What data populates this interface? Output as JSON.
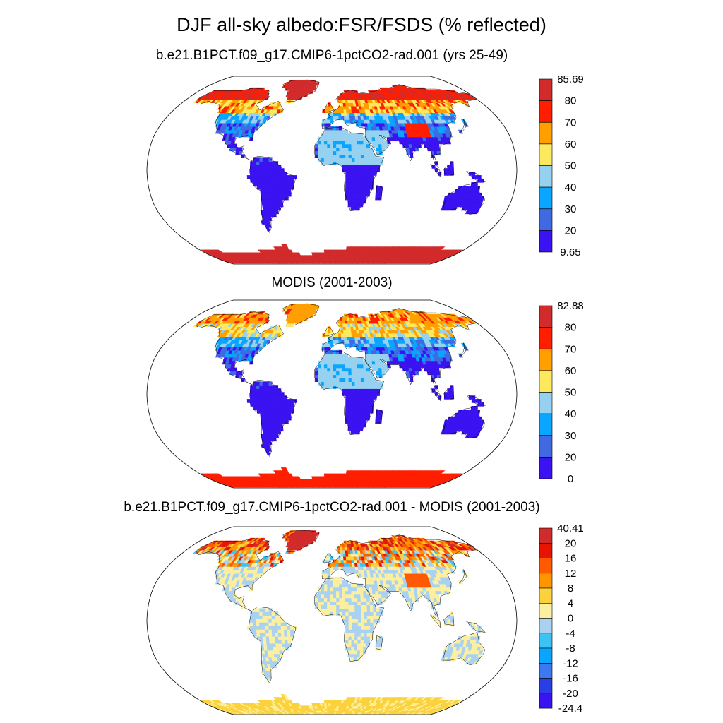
{
  "title": "DJF all-sky albedo:FSR/FSDS (% reflected)",
  "chart_data": [
    {
      "type": "heatmap",
      "projection": "robinson",
      "title": "b.e21.B1PCT.f09_g17.CMIP6-1pctCO2-rad.001 (yrs 25-49)",
      "colorbar": {
        "labels": [
          "85.69",
          "80",
          "70",
          "60",
          "50",
          "40",
          "30",
          "20",
          "9.65"
        ],
        "min": 9.65,
        "max": 85.69,
        "levels": [
          20,
          30,
          40,
          50,
          60,
          70,
          80
        ],
        "colors": [
          "#3b13f2",
          "#4169e1",
          "#0aa5ff",
          "#96d2f0",
          "#fce95e",
          "#ff9f00",
          "#ff1e00",
          "#d22b2b"
        ]
      }
    },
    {
      "type": "heatmap",
      "projection": "robinson",
      "title": "MODIS (2001-2003)",
      "colorbar": {
        "labels": [
          "82.88",
          "80",
          "70",
          "60",
          "50",
          "40",
          "30",
          "20",
          "0"
        ],
        "min": 0,
        "max": 82.88,
        "levels": [
          20,
          30,
          40,
          50,
          60,
          70,
          80
        ],
        "colors": [
          "#3b13f2",
          "#4169e1",
          "#0aa5ff",
          "#96d2f0",
          "#fce95e",
          "#ff9f00",
          "#ff1e00",
          "#d22b2b"
        ]
      }
    },
    {
      "type": "heatmap",
      "projection": "robinson",
      "title": "b.e21.B1PCT.f09_g17.CMIP6-1pctCO2-rad.001 - MODIS (2001-2003)",
      "colorbar": {
        "labels": [
          "40.41",
          "20",
          "16",
          "12",
          "8",
          "4",
          "0",
          "-4",
          "-8",
          "-12",
          "-16",
          "-20",
          "-24.4"
        ],
        "min": -24.4,
        "max": 40.41,
        "levels": [
          -20,
          -16,
          -12,
          -8,
          -4,
          0,
          4,
          8,
          12,
          16,
          20
        ],
        "colors": [
          "#3b13f2",
          "#2a3ee6",
          "#3c78f0",
          "#0aa5ff",
          "#3cc3f5",
          "#aad2f0",
          "#fcf0a0",
          "#fcd23c",
          "#ff9600",
          "#ff5a00",
          "#e61400",
          "#d22b2b"
        ]
      }
    }
  ]
}
